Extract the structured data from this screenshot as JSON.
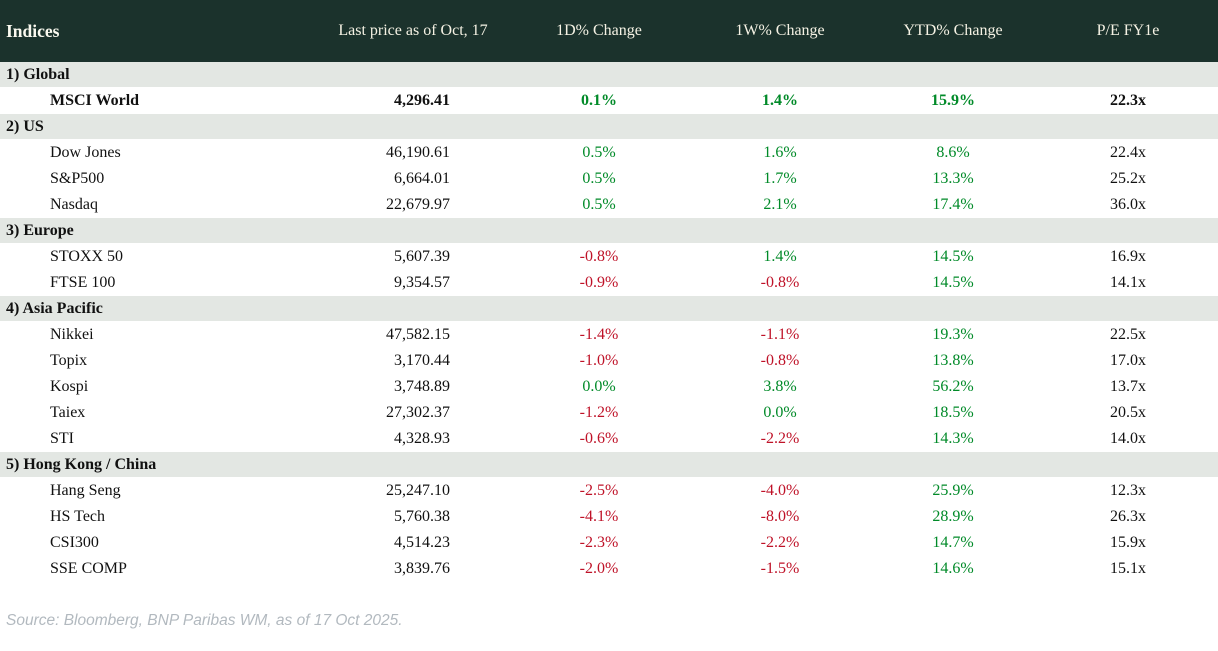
{
  "table": {
    "title": "Indices",
    "columns": {
      "last_price": "Last price as of Oct, 17",
      "chg_1d": "1D% Change",
      "chg_1w": "1W% Change",
      "chg_ytd": "YTD% Change",
      "pe": "P/E FY1e"
    },
    "sections": [
      {
        "label": "1) Global",
        "rows": [
          {
            "name": "MSCI World",
            "bold": true,
            "last": "4,296.41",
            "chg_1d": "0.1%",
            "chg_1w": "1.4%",
            "chg_ytd": "15.9%",
            "pe": "22.3x"
          }
        ]
      },
      {
        "label": "2) US",
        "rows": [
          {
            "name": "Dow Jones",
            "bold": false,
            "last": "46,190.61",
            "chg_1d": "0.5%",
            "chg_1w": "1.6%",
            "chg_ytd": "8.6%",
            "pe": "22.4x"
          },
          {
            "name": "S&P500",
            "bold": false,
            "last": "6,664.01",
            "chg_1d": "0.5%",
            "chg_1w": "1.7%",
            "chg_ytd": "13.3%",
            "pe": "25.2x"
          },
          {
            "name": "Nasdaq",
            "bold": false,
            "last": "22,679.97",
            "chg_1d": "0.5%",
            "chg_1w": "2.1%",
            "chg_ytd": "17.4%",
            "pe": "36.0x"
          }
        ]
      },
      {
        "label": "3) Europe",
        "rows": [
          {
            "name": "STOXX 50",
            "bold": false,
            "last": "5,607.39",
            "chg_1d": "-0.8%",
            "chg_1w": "1.4%",
            "chg_ytd": "14.5%",
            "pe": "16.9x"
          },
          {
            "name": "FTSE 100",
            "bold": false,
            "last": "9,354.57",
            "chg_1d": "-0.9%",
            "chg_1w": "-0.8%",
            "chg_ytd": "14.5%",
            "pe": "14.1x"
          }
        ]
      },
      {
        "label": "4) Asia Pacific",
        "rows": [
          {
            "name": "Nikkei",
            "bold": false,
            "last": "47,582.15",
            "chg_1d": "-1.4%",
            "chg_1w": "-1.1%",
            "chg_ytd": "19.3%",
            "pe": "22.5x"
          },
          {
            "name": "Topix",
            "bold": false,
            "last": "3,170.44",
            "chg_1d": "-1.0%",
            "chg_1w": "-0.8%",
            "chg_ytd": "13.8%",
            "pe": "17.0x"
          },
          {
            "name": "Kospi",
            "bold": false,
            "last": "3,748.89",
            "chg_1d": "0.0%",
            "chg_1w": "3.8%",
            "chg_ytd": "56.2%",
            "pe": "13.7x"
          },
          {
            "name": "Taiex",
            "bold": false,
            "last": "27,302.37",
            "chg_1d": "-1.2%",
            "chg_1w": "0.0%",
            "chg_ytd": "18.5%",
            "pe": "20.5x"
          },
          {
            "name": "STI",
            "bold": false,
            "last": "4,328.93",
            "chg_1d": "-0.6%",
            "chg_1w": "-2.2%",
            "chg_ytd": "14.3%",
            "pe": "14.0x"
          }
        ]
      },
      {
        "label": "5) Hong Kong / China",
        "rows": [
          {
            "name": "Hang Seng",
            "bold": false,
            "last": "25,247.10",
            "chg_1d": "-2.5%",
            "chg_1w": "-4.0%",
            "chg_ytd": "25.9%",
            "pe": "12.3x"
          },
          {
            "name": "HS Tech",
            "bold": false,
            "last": "5,760.38",
            "chg_1d": "-4.1%",
            "chg_1w": "-8.0%",
            "chg_ytd": "28.9%",
            "pe": "26.3x"
          },
          {
            "name": "CSI300",
            "bold": false,
            "last": "4,514.23",
            "chg_1d": "-2.3%",
            "chg_1w": "-2.2%",
            "chg_ytd": "14.7%",
            "pe": "15.9x"
          },
          {
            "name": "SSE COMP",
            "bold": false,
            "last": "3,839.76",
            "chg_1d": "-2.0%",
            "chg_1w": "-1.5%",
            "chg_ytd": "14.6%",
            "pe": "15.1x"
          }
        ]
      }
    ]
  },
  "source": "Source: Bloomberg, BNP Paribas WM, as of 17 Oct 2025.",
  "colors": {
    "header_bg": "#1b322c",
    "header_text": "#f5f2e4",
    "section_bg": "#e3e7e3",
    "positive": "#008a28",
    "negative": "#bf1228",
    "source_text": "#b2b9bf"
  },
  "chart_data": {
    "type": "table",
    "title": "Indices",
    "columns": [
      "Index",
      "Last price as of Oct, 17",
      "1D% Change",
      "1W% Change",
      "YTD% Change",
      "P/E FY1e"
    ],
    "groups": [
      "1) Global",
      "2) US",
      "3) Europe",
      "4) Asia Pacific",
      "5) Hong Kong / China"
    ],
    "rows": [
      {
        "group": "1) Global",
        "index": "MSCI World",
        "last_price": 4296.41,
        "chg_1d_pct": 0.1,
        "chg_1w_pct": 1.4,
        "chg_ytd_pct": 15.9,
        "pe_fy1e": 22.3
      },
      {
        "group": "2) US",
        "index": "Dow Jones",
        "last_price": 46190.61,
        "chg_1d_pct": 0.5,
        "chg_1w_pct": 1.6,
        "chg_ytd_pct": 8.6,
        "pe_fy1e": 22.4
      },
      {
        "group": "2) US",
        "index": "S&P500",
        "last_price": 6664.01,
        "chg_1d_pct": 0.5,
        "chg_1w_pct": 1.7,
        "chg_ytd_pct": 13.3,
        "pe_fy1e": 25.2
      },
      {
        "group": "2) US",
        "index": "Nasdaq",
        "last_price": 22679.97,
        "chg_1d_pct": 0.5,
        "chg_1w_pct": 2.1,
        "chg_ytd_pct": 17.4,
        "pe_fy1e": 36.0
      },
      {
        "group": "3) Europe",
        "index": "STOXX 50",
        "last_price": 5607.39,
        "chg_1d_pct": -0.8,
        "chg_1w_pct": 1.4,
        "chg_ytd_pct": 14.5,
        "pe_fy1e": 16.9
      },
      {
        "group": "3) Europe",
        "index": "FTSE 100",
        "last_price": 9354.57,
        "chg_1d_pct": -0.9,
        "chg_1w_pct": -0.8,
        "chg_ytd_pct": 14.5,
        "pe_fy1e": 14.1
      },
      {
        "group": "4) Asia Pacific",
        "index": "Nikkei",
        "last_price": 47582.15,
        "chg_1d_pct": -1.4,
        "chg_1w_pct": -1.1,
        "chg_ytd_pct": 19.3,
        "pe_fy1e": 22.5
      },
      {
        "group": "4) Asia Pacific",
        "index": "Topix",
        "last_price": 3170.44,
        "chg_1d_pct": -1.0,
        "chg_1w_pct": -0.8,
        "chg_ytd_pct": 13.8,
        "pe_fy1e": 17.0
      },
      {
        "group": "4) Asia Pacific",
        "index": "Kospi",
        "last_price": 3748.89,
        "chg_1d_pct": 0.0,
        "chg_1w_pct": 3.8,
        "chg_ytd_pct": 56.2,
        "pe_fy1e": 13.7
      },
      {
        "group": "4) Asia Pacific",
        "index": "Taiex",
        "last_price": 27302.37,
        "chg_1d_pct": -1.2,
        "chg_1w_pct": 0.0,
        "chg_ytd_pct": 18.5,
        "pe_fy1e": 20.5
      },
      {
        "group": "4) Asia Pacific",
        "index": "STI",
        "last_price": 4328.93,
        "chg_1d_pct": -0.6,
        "chg_1w_pct": -2.2,
        "chg_ytd_pct": 14.3,
        "pe_fy1e": 14.0
      },
      {
        "group": "5) Hong Kong / China",
        "index": "Hang Seng",
        "last_price": 25247.1,
        "chg_1d_pct": -2.5,
        "chg_1w_pct": -4.0,
        "chg_ytd_pct": 25.9,
        "pe_fy1e": 12.3
      },
      {
        "group": "5) Hong Kong / China",
        "index": "HS Tech",
        "last_price": 5760.38,
        "chg_1d_pct": -4.1,
        "chg_1w_pct": -8.0,
        "chg_ytd_pct": 28.9,
        "pe_fy1e": 26.3
      },
      {
        "group": "5) Hong Kong / China",
        "index": "CSI300",
        "last_price": 4514.23,
        "chg_1d_pct": -2.3,
        "chg_1w_pct": -2.2,
        "chg_ytd_pct": 14.7,
        "pe_fy1e": 15.9
      },
      {
        "group": "5) Hong Kong / China",
        "index": "SSE COMP",
        "last_price": 3839.76,
        "chg_1d_pct": -2.0,
        "chg_1w_pct": -1.5,
        "chg_ytd_pct": 14.6,
        "pe_fy1e": 15.1
      }
    ],
    "notes": "Positive changes rendered green (#008a28), negative red (#bf1228). MSCI World row rendered bold.",
    "source": "Source: Bloomberg, BNP Paribas WM, as of 17 Oct 2025."
  }
}
